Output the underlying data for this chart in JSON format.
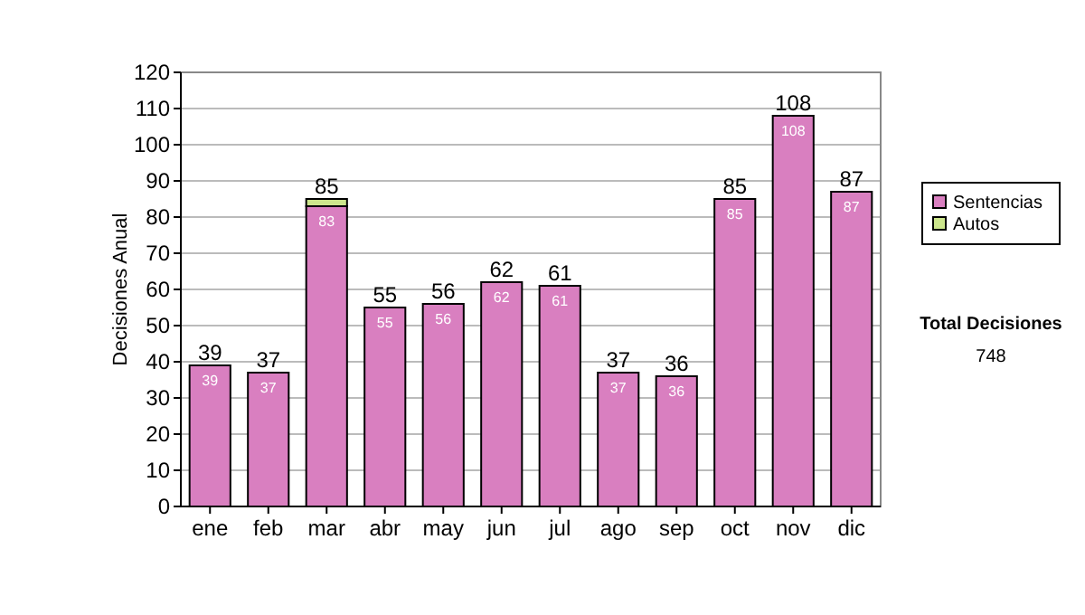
{
  "chart_data": {
    "type": "bar",
    "stacked": true,
    "ylabel": "Decisiones Anual",
    "categories": [
      "ene",
      "feb",
      "mar",
      "abr",
      "may",
      "jun",
      "jul",
      "ago",
      "sep",
      "oct",
      "nov",
      "dic"
    ],
    "series": [
      {
        "name": "Sentencias",
        "color": "#d97fc0",
        "values": [
          39,
          37,
          83,
          55,
          56,
          62,
          61,
          37,
          36,
          85,
          108,
          87
        ],
        "value_labels": [
          "39",
          "37",
          "83",
          "55",
          "56",
          "62",
          "61",
          "37",
          "36",
          "85",
          "108",
          "87"
        ]
      },
      {
        "name": "Autos",
        "color": "#cce68c",
        "values": [
          null,
          null,
          2,
          null,
          null,
          null,
          null,
          null,
          null,
          null,
          null,
          null
        ]
      }
    ],
    "totals": [
      "39",
      "37",
      "85",
      "55",
      "56",
      "62",
      "61",
      "37",
      "36",
      "85",
      "108",
      "87"
    ],
    "ylim": [
      0,
      120
    ],
    "yticks": [
      0,
      10,
      20,
      30,
      40,
      50,
      60,
      70,
      80,
      90,
      100,
      110,
      120
    ],
    "grid": "y",
    "legend": "right",
    "annotations": [
      "Total Decisiones",
      "748"
    ]
  }
}
